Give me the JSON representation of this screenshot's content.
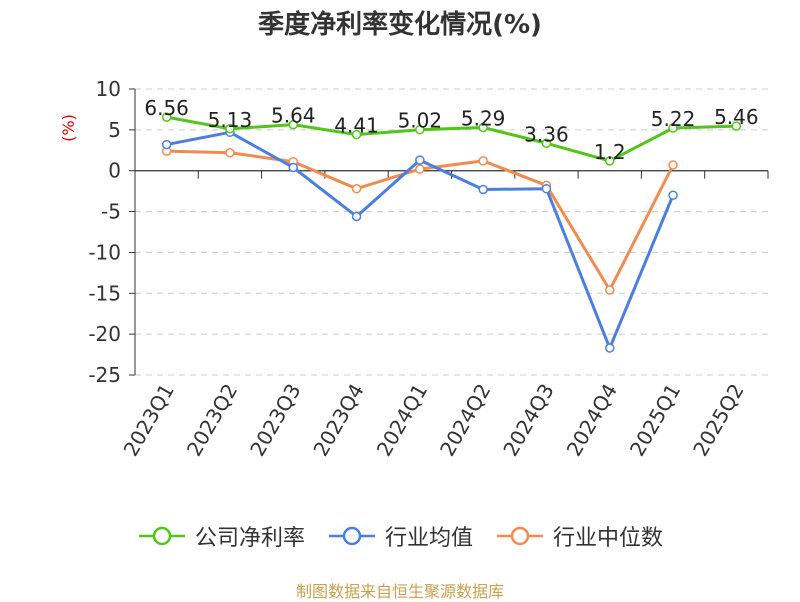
{
  "chart_data": {
    "type": "line",
    "title": "季度净利率变化情况(%)",
    "ylabel": "(%)",
    "xlabel": "",
    "categories": [
      "2023Q1",
      "2023Q2",
      "2023Q3",
      "2023Q4",
      "2024Q1",
      "2024Q2",
      "2024Q3",
      "2024Q4",
      "2025Q1",
      "2025Q2"
    ],
    "ylim": [
      -25,
      10
    ],
    "yticks": [
      10,
      5,
      0,
      -5,
      -10,
      -15,
      -20,
      -25
    ],
    "grid": true,
    "legend_position": "bottom",
    "series": [
      {
        "name": "公司净利率",
        "color": "#52c41a",
        "values": [
          6.56,
          5.13,
          5.64,
          4.41,
          5.02,
          5.29,
          3.36,
          1.2,
          5.22,
          5.46
        ],
        "labels": [
          "6.56",
          "5.13",
          "5.64",
          "4.41",
          "5.02",
          "5.29",
          "3.36",
          "1.2",
          "5.22",
          "5.46"
        ]
      },
      {
        "name": "行业均值",
        "color": "#4a7fe0",
        "values": [
          3.2,
          4.7,
          0.4,
          -5.6,
          1.3,
          -2.3,
          -2.2,
          -21.7,
          -3.0,
          null
        ]
      },
      {
        "name": "行业中位数",
        "color": "#f28b50",
        "values": [
          2.4,
          2.2,
          1.1,
          -2.2,
          0.2,
          1.2,
          -1.8,
          -14.6,
          0.7,
          null
        ]
      }
    ]
  },
  "source": "制图数据来自恒生聚源数据库"
}
